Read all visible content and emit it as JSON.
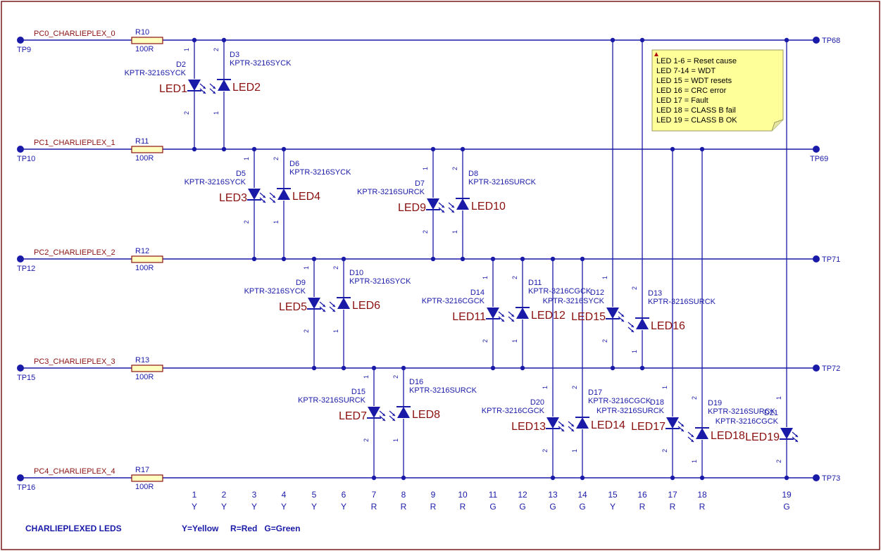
{
  "title": "CHARLIEPLEXED LEDS",
  "legend": "Y=Yellow     R=Red   G=Green",
  "colors": {
    "wire": "#1a1aa8",
    "label": "#8a1010",
    "resistor_fill": "#ffffc0",
    "note_fill": "#ffff99",
    "border": "#7a1a1a"
  },
  "nets": [
    {
      "name": "PC0_CHARLIEPLEX_0",
      "resistor": "R10",
      "value": "100R",
      "tp_left": "TP9",
      "tp_right": "TP68"
    },
    {
      "name": "PC1_CHARLIEPLEX_1",
      "resistor": "R11",
      "value": "100R",
      "tp_left": "TP10",
      "tp_right": "TP69"
    },
    {
      "name": "PC2_CHARLIEPLEX_2",
      "resistor": "R12",
      "value": "100R",
      "tp_left": "TP12",
      "tp_right": "TP71"
    },
    {
      "name": "PC3_CHARLIEPLEX_3",
      "resistor": "R13",
      "value": "100R",
      "tp_left": "TP15",
      "tp_right": "TP72"
    },
    {
      "name": "PC4_CHARLIEPLEX_4",
      "resistor": "R17",
      "value": "100R",
      "tp_left": "TP16",
      "tp_right": "TP73"
    }
  ],
  "leds": [
    {
      "des": "D2",
      "part": "KPTR-3216SYCK",
      "label": "LED1",
      "dir": "down"
    },
    {
      "des": "D3",
      "part": "KPTR-3216SYCK",
      "label": "LED2",
      "dir": "up"
    },
    {
      "des": "D5",
      "part": "KPTR-3216SYCK",
      "label": "LED3",
      "dir": "down"
    },
    {
      "des": "D6",
      "part": "KPTR-3216SYCK",
      "label": "LED4",
      "dir": "up"
    },
    {
      "des": "D9",
      "part": "KPTR-3216SYCK",
      "label": "LED5",
      "dir": "down"
    },
    {
      "des": "D10",
      "part": "KPTR-3216SYCK",
      "label": "LED6",
      "dir": "up"
    },
    {
      "des": "D15",
      "part": "KPTR-3216SURCK",
      "label": "LED7",
      "dir": "down"
    },
    {
      "des": "D16",
      "part": "KPTR-3216SURCK",
      "label": "LED8",
      "dir": "up"
    },
    {
      "des": "D7",
      "part": "KPTR-3216SURCK",
      "label": "LED9",
      "dir": "down"
    },
    {
      "des": "D8",
      "part": "KPTR-3216SURCK",
      "label": "LED10",
      "dir": "up"
    },
    {
      "des": "D14",
      "part": "KPTR-3216CGCK",
      "label": "LED11",
      "dir": "down"
    },
    {
      "des": "D11",
      "part": "KPTR-3216CGCK",
      "label": "LED12",
      "dir": "up"
    },
    {
      "des": "D20",
      "part": "KPTR-3216CGCK",
      "label": "LED13",
      "dir": "down"
    },
    {
      "des": "D17",
      "part": "KPTR-3216CGCK",
      "label": "LED14",
      "dir": "up"
    },
    {
      "des": "D12",
      "part": "KPTR-3216SYCK",
      "label": "LED15",
      "dir": "down"
    },
    {
      "des": "D13",
      "part": "KPTR-3216SURCK",
      "label": "LED16",
      "dir": "up"
    },
    {
      "des": "D18",
      "part": "KPTR-3216SURCK",
      "label": "LED17",
      "dir": "down"
    },
    {
      "des": "D19",
      "part": "KPTR-3216SURCK",
      "label": "LED18",
      "dir": "up"
    },
    {
      "des": "D21",
      "part": "KPTR-3216CGCK",
      "label": "LED19",
      "dir": "down"
    }
  ],
  "pin_labels": {
    "one": "1",
    "two": "2"
  },
  "columns": [
    {
      "num": "1",
      "color": "Y"
    },
    {
      "num": "2",
      "color": "Y"
    },
    {
      "num": "3",
      "color": "Y"
    },
    {
      "num": "4",
      "color": "Y"
    },
    {
      "num": "5",
      "color": "Y"
    },
    {
      "num": "6",
      "color": "Y"
    },
    {
      "num": "7",
      "color": "R"
    },
    {
      "num": "8",
      "color": "R"
    },
    {
      "num": "9",
      "color": "R"
    },
    {
      "num": "10",
      "color": "R"
    },
    {
      "num": "11",
      "color": "G"
    },
    {
      "num": "12",
      "color": "G"
    },
    {
      "num": "13",
      "color": "G"
    },
    {
      "num": "14",
      "color": "G"
    },
    {
      "num": "15",
      "color": "Y"
    },
    {
      "num": "16",
      "color": "R"
    },
    {
      "num": "17",
      "color": "R"
    },
    {
      "num": "18",
      "color": "R"
    },
    {
      "num": "19",
      "color": "G"
    }
  ],
  "note": [
    "LED 1-6     = Reset cause",
    "LED 7-14   = WDT",
    "LED 15      = WDT resets",
    "LED 16     = CRC error",
    "LED 17     = Fault",
    "LED 18     = CLASS B fail",
    "LED 19     = CLASS B OK"
  ]
}
